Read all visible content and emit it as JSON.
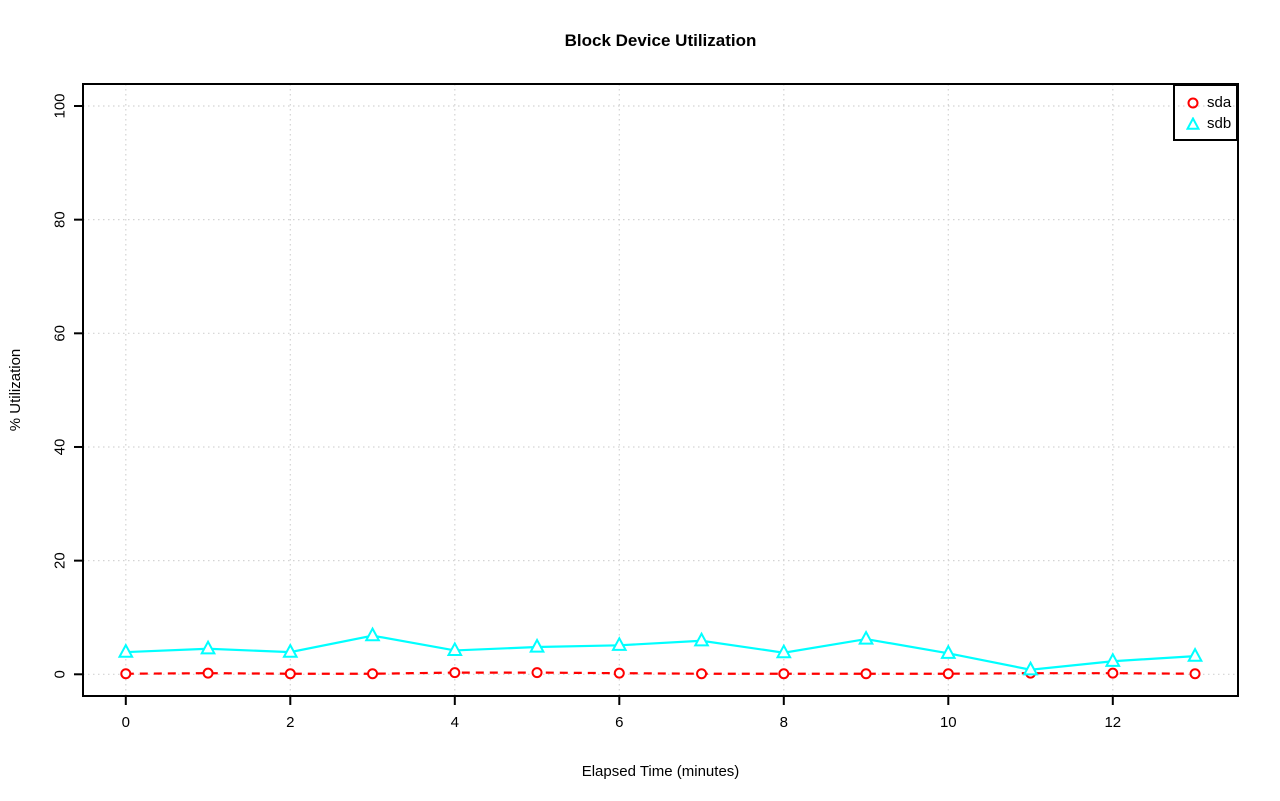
{
  "chart_data": {
    "type": "line",
    "title": "Block Device Utilization",
    "xlabel": "Elapsed Time (minutes)",
    "ylabel": "% Utilization",
    "x": [
      0,
      1,
      2,
      3,
      4,
      5,
      6,
      7,
      8,
      9,
      10,
      11,
      12,
      13
    ],
    "x_ticks": [
      0,
      2,
      4,
      6,
      8,
      10,
      12
    ],
    "y_ticks": [
      0,
      20,
      40,
      60,
      80,
      100
    ],
    "xlim": [
      0,
      13
    ],
    "ylim": [
      0,
      100
    ],
    "grid": true,
    "grid_style": "dotted",
    "grid_color": "#d3d3d3",
    "legend_position": "topright",
    "series": [
      {
        "name": "sda",
        "color": "#ff0000",
        "marker": "circle",
        "line_style": "dashed",
        "values": [
          0.1,
          0.2,
          0.1,
          0.1,
          0.3,
          0.3,
          0.2,
          0.1,
          0.1,
          0.1,
          0.1,
          0.2,
          0.2,
          0.1
        ]
      },
      {
        "name": "sdb",
        "color": "#00ffff",
        "marker": "triangle",
        "line_style": "solid",
        "values": [
          3.9,
          4.5,
          3.9,
          6.8,
          4.2,
          4.8,
          5.1,
          5.9,
          3.8,
          6.2,
          3.7,
          0.8,
          2.3,
          3.2
        ]
      }
    ]
  }
}
